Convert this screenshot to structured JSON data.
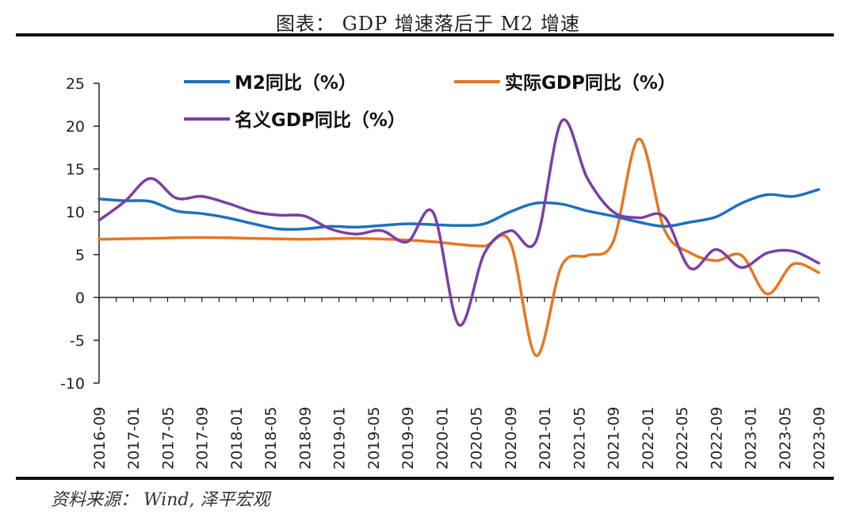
{
  "header": {
    "title": "图表： GDP 增速落后于 M2 增速"
  },
  "footer": {
    "source": "资料来源： Wind, 泽平宏观"
  },
  "chart_data": {
    "type": "line",
    "title": "图表： GDP 增速落后于 M2 增速",
    "xlabel": "",
    "ylabel": "",
    "ylim": [
      -10,
      25
    ],
    "yticks": [
      25,
      20,
      15,
      10,
      5,
      0,
      -5,
      -10
    ],
    "xlim": [
      0,
      84
    ],
    "xtick_labels": [
      "2016-09",
      "2017-01",
      "2017-05",
      "2017-09",
      "2018-01",
      "2018-05",
      "2018-09",
      "2019-01",
      "2019-05",
      "2019-09",
      "2020-01",
      "2020-05",
      "2020-09",
      "2021-01",
      "2021-05",
      "2021-09",
      "2022-01",
      "2022-05",
      "2022-09",
      "2023-01",
      "2023-05",
      "2023-09"
    ],
    "xtick_step": 4,
    "legend": [
      {
        "key": "m2",
        "label": "M2同比（%）"
      },
      {
        "key": "real",
        "label": "实际GDP同比（%）"
      },
      {
        "key": "nominal",
        "label": "名义GDP同比（%）"
      }
    ],
    "series": [
      {
        "key": "m2",
        "name": "M2同比（%）",
        "color": "#1f6fbf",
        "x": [
          0,
          3,
          6,
          9,
          12,
          15,
          18,
          21,
          24,
          27,
          30,
          33,
          36,
          39,
          42,
          45,
          48,
          51,
          54,
          57,
          60,
          63,
          66,
          69,
          72,
          75,
          78,
          81,
          84
        ],
        "values": [
          11.5,
          11.3,
          11.2,
          10.1,
          9.8,
          9.3,
          8.6,
          8.0,
          8.0,
          8.3,
          8.2,
          8.4,
          8.6,
          8.5,
          8.4,
          8.6,
          10.0,
          11.0,
          10.9,
          10.1,
          9.5,
          8.8,
          8.3,
          8.8,
          9.4,
          11.0,
          12.0,
          11.8,
          12.6
        ]
      },
      {
        "key": "real",
        "name": "实际GDP同比（%）",
        "color": "#e8761e",
        "x": [
          0,
          6,
          12,
          18,
          24,
          30,
          36,
          39,
          42,
          45,
          48,
          51,
          54,
          57,
          60,
          63,
          66,
          69,
          72,
          75,
          78,
          81,
          84
        ],
        "values": [
          6.8,
          6.9,
          7.0,
          6.9,
          6.8,
          6.9,
          6.7,
          6.5,
          6.2,
          6.0,
          6.4,
          -6.8,
          3.7,
          4.9,
          6.5,
          18.5,
          7.9,
          5.2,
          4.3,
          4.9,
          0.4,
          3.9,
          2.9
        ]
      },
      {
        "key": "nominal",
        "name": "名义GDP同比（%）",
        "color": "#7b3fa6",
        "x": [
          0,
          3,
          6,
          9,
          12,
          15,
          18,
          21,
          24,
          27,
          30,
          33,
          36,
          39,
          42,
          45,
          48,
          51,
          54,
          57,
          60,
          63,
          66,
          69,
          72,
          75,
          78,
          81,
          84
        ],
        "values": [
          9.0,
          11.2,
          13.9,
          11.6,
          11.8,
          11.0,
          10.0,
          9.6,
          9.5,
          8.0,
          7.4,
          7.8,
          6.5,
          9.9,
          -3.2,
          5.2,
          7.8,
          6.6,
          20.6,
          13.9,
          10.0,
          9.3,
          9.4,
          3.4,
          5.6,
          3.5,
          5.2,
          5.4,
          4.0
        ]
      }
    ],
    "legend_position": "top-left"
  }
}
